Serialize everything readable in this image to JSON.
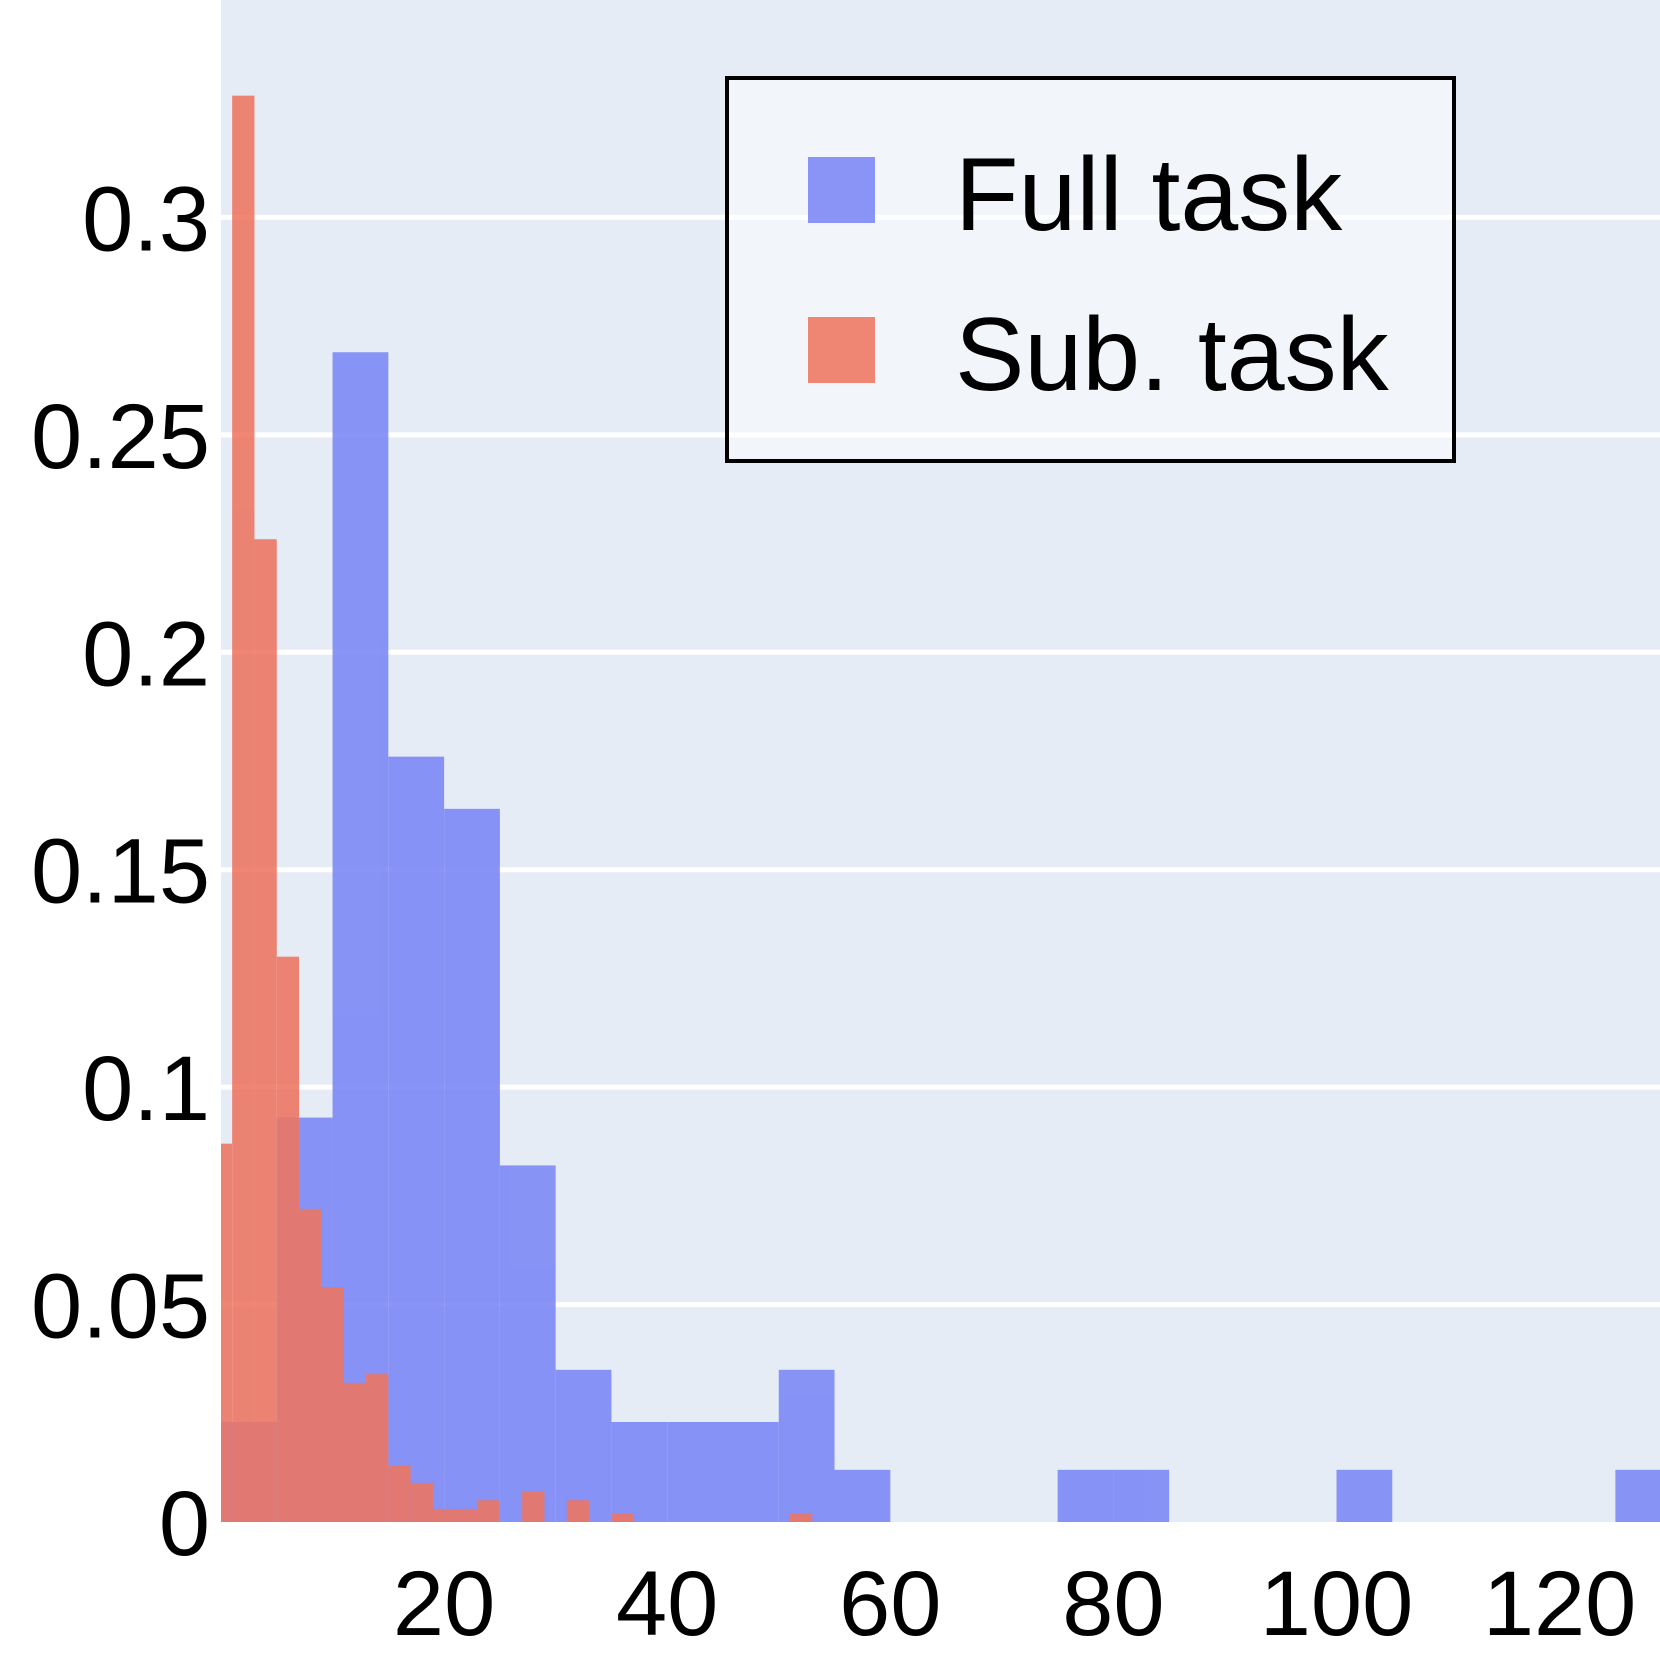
{
  "chart_data": {
    "type": "bar",
    "title": "",
    "xlabel": "",
    "ylabel": "",
    "xlim": [
      0,
      129
    ],
    "ylim": [
      0,
      0.35
    ],
    "grid": true,
    "legend_position": "top-right",
    "x_ticks": [
      {
        "value": 20,
        "label": "20"
      },
      {
        "value": 40,
        "label": "40"
      },
      {
        "value": 60,
        "label": "60"
      },
      {
        "value": 80,
        "label": "80"
      },
      {
        "value": 100,
        "label": "100"
      },
      {
        "value": 120,
        "label": "120"
      }
    ],
    "y_ticks": [
      {
        "value": 0,
        "label": "0"
      },
      {
        "value": 0.05,
        "label": "0.05"
      },
      {
        "value": 0.1,
        "label": "0.1"
      },
      {
        "value": 0.15,
        "label": "0.15"
      },
      {
        "value": 0.2,
        "label": "0.2"
      },
      {
        "value": 0.25,
        "label": "0.25"
      },
      {
        "value": 0.3,
        "label": "0.3"
      }
    ],
    "series": [
      {
        "name": "Full task",
        "color": "#7b86f6",
        "bins": [
          {
            "x0": 0,
            "x1": 5,
            "y": 0.023
          },
          {
            "x0": 5,
            "x1": 10,
            "y": 0.093
          },
          {
            "x0": 10,
            "x1": 15,
            "y": 0.269
          },
          {
            "x0": 15,
            "x1": 20,
            "y": 0.176
          },
          {
            "x0": 20,
            "x1": 25,
            "y": 0.164
          },
          {
            "x0": 25,
            "x1": 30,
            "y": 0.082
          },
          {
            "x0": 30,
            "x1": 35,
            "y": 0.035
          },
          {
            "x0": 35,
            "x1": 40,
            "y": 0.023
          },
          {
            "x0": 40,
            "x1": 45,
            "y": 0.023
          },
          {
            "x0": 45,
            "x1": 50,
            "y": 0.023
          },
          {
            "x0": 50,
            "x1": 55,
            "y": 0.035
          },
          {
            "x0": 55,
            "x1": 60,
            "y": 0.012
          },
          {
            "x0": 60,
            "x1": 65,
            "y": 0
          },
          {
            "x0": 65,
            "x1": 70,
            "y": 0
          },
          {
            "x0": 70,
            "x1": 75,
            "y": 0
          },
          {
            "x0": 75,
            "x1": 80,
            "y": 0.012
          },
          {
            "x0": 80,
            "x1": 85,
            "y": 0.012
          },
          {
            "x0": 85,
            "x1": 90,
            "y": 0
          },
          {
            "x0": 90,
            "x1": 95,
            "y": 0
          },
          {
            "x0": 95,
            "x1": 100,
            "y": 0
          },
          {
            "x0": 100,
            "x1": 105,
            "y": 0.012
          },
          {
            "x0": 105,
            "x1": 110,
            "y": 0
          },
          {
            "x0": 110,
            "x1": 115,
            "y": 0
          },
          {
            "x0": 115,
            "x1": 120,
            "y": 0
          },
          {
            "x0": 120,
            "x1": 125,
            "y": 0
          },
          {
            "x0": 125,
            "x1": 130,
            "y": 0.012
          }
        ]
      },
      {
        "name": "Sub. task",
        "color": "#ee7560",
        "bins": [
          {
            "x0": 0,
            "x1": 1,
            "y": 0.087
          },
          {
            "x0": 1,
            "x1": 3,
            "y": 0.328
          },
          {
            "x0": 3,
            "x1": 5,
            "y": 0.226
          },
          {
            "x0": 5,
            "x1": 7,
            "y": 0.13
          },
          {
            "x0": 7,
            "x1": 9,
            "y": 0.072
          },
          {
            "x0": 9,
            "x1": 11,
            "y": 0.054
          },
          {
            "x0": 11,
            "x1": 13,
            "y": 0.032
          },
          {
            "x0": 13,
            "x1": 15,
            "y": 0.034
          },
          {
            "x0": 15,
            "x1": 17,
            "y": 0.013
          },
          {
            "x0": 17,
            "x1": 19,
            "y": 0.009
          },
          {
            "x0": 19,
            "x1": 21,
            "y": 0.003
          },
          {
            "x0": 21,
            "x1": 23,
            "y": 0.003
          },
          {
            "x0": 23,
            "x1": 25,
            "y": 0.005
          },
          {
            "x0": 27,
            "x1": 29,
            "y": 0.007
          },
          {
            "x0": 31,
            "x1": 33,
            "y": 0.005
          },
          {
            "x0": 35,
            "x1": 37,
            "y": 0.002
          },
          {
            "x0": 51,
            "x1": 53,
            "y": 0.002
          }
        ]
      }
    ]
  }
}
